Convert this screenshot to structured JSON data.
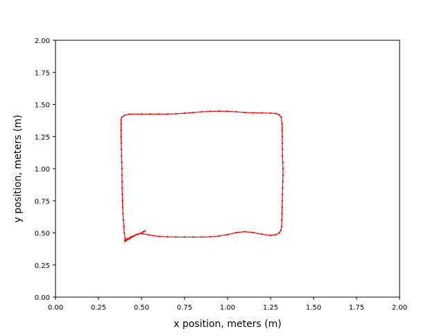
{
  "chart_data": {
    "type": "scatter",
    "title": "",
    "xlabel": "x position, meters (m)",
    "ylabel": "y position, meters (m)",
    "xlim": [
      0,
      2
    ],
    "ylim": [
      0,
      2
    ],
    "xticks": [
      "0.00",
      "0.25",
      "0.50",
      "0.75",
      "1.00",
      "1.25",
      "1.50",
      "1.75",
      "2.00"
    ],
    "yticks": [
      "0.00",
      "0.25",
      "0.50",
      "0.75",
      "1.00",
      "1.25",
      "1.50",
      "1.75",
      "2.00"
    ],
    "grid": false,
    "legend": "none",
    "series": [
      {
        "color": "#ff0000",
        "marker": "dot",
        "points": [
          [
            0.51,
            0.51
          ],
          [
            0.52,
            0.515
          ],
          [
            0.5,
            0.5
          ],
          [
            0.48,
            0.49
          ],
          [
            0.455,
            0.475
          ],
          [
            0.43,
            0.455
          ],
          [
            0.41,
            0.44
          ],
          [
            0.405,
            0.455
          ],
          [
            0.4,
            0.5
          ],
          [
            0.397,
            0.55
          ],
          [
            0.394,
            0.6
          ],
          [
            0.392,
            0.65
          ],
          [
            0.39,
            0.7
          ],
          [
            0.389,
            0.75
          ],
          [
            0.388,
            0.8
          ],
          [
            0.387,
            0.85
          ],
          [
            0.387,
            0.9
          ],
          [
            0.386,
            0.95
          ],
          [
            0.386,
            1.0
          ],
          [
            0.385,
            1.05
          ],
          [
            0.384,
            1.1
          ],
          [
            0.383,
            1.15
          ],
          [
            0.382,
            1.2
          ],
          [
            0.381,
            1.25
          ],
          [
            0.381,
            1.3
          ],
          [
            0.381,
            1.35
          ],
          [
            0.381,
            1.38
          ],
          [
            0.385,
            1.4
          ],
          [
            0.4,
            1.415
          ],
          [
            0.43,
            1.425
          ],
          [
            0.5,
            1.425
          ],
          [
            0.55,
            1.425
          ],
          [
            0.6,
            1.425
          ],
          [
            0.65,
            1.425
          ],
          [
            0.7,
            1.428
          ],
          [
            0.75,
            1.432
          ],
          [
            0.8,
            1.437
          ],
          [
            0.85,
            1.443
          ],
          [
            0.9,
            1.447
          ],
          [
            0.95,
            1.448
          ],
          [
            1.0,
            1.447
          ],
          [
            1.05,
            1.443
          ],
          [
            1.1,
            1.438
          ],
          [
            1.15,
            1.435
          ],
          [
            1.2,
            1.434
          ],
          [
            1.25,
            1.432
          ],
          [
            1.28,
            1.43
          ],
          [
            1.3,
            1.42
          ],
          [
            1.312,
            1.4
          ],
          [
            1.316,
            1.35
          ],
          [
            1.317,
            1.3
          ],
          [
            1.318,
            1.25
          ],
          [
            1.318,
            1.2
          ],
          [
            1.319,
            1.15
          ],
          [
            1.319,
            1.1
          ],
          [
            1.321,
            1.05
          ],
          [
            1.322,
            1.0
          ],
          [
            1.322,
            0.95
          ],
          [
            1.321,
            0.9
          ],
          [
            1.32,
            0.85
          ],
          [
            1.319,
            0.8
          ],
          [
            1.318,
            0.75
          ],
          [
            1.317,
            0.7
          ],
          [
            1.316,
            0.65
          ],
          [
            1.315,
            0.6
          ],
          [
            1.314,
            0.55
          ],
          [
            1.31,
            0.52
          ],
          [
            1.3,
            0.5
          ],
          [
            1.28,
            0.487
          ],
          [
            1.25,
            0.48
          ],
          [
            1.2,
            0.49
          ],
          [
            1.15,
            0.502
          ],
          [
            1.1,
            0.51
          ],
          [
            1.05,
            0.502
          ],
          [
            1.0,
            0.487
          ],
          [
            0.95,
            0.476
          ],
          [
            0.9,
            0.47
          ],
          [
            0.85,
            0.468
          ],
          [
            0.8,
            0.468
          ],
          [
            0.75,
            0.468
          ],
          [
            0.7,
            0.468
          ],
          [
            0.65,
            0.47
          ],
          [
            0.6,
            0.473
          ],
          [
            0.57,
            0.478
          ],
          [
            0.54,
            0.485
          ],
          [
            0.51,
            0.493
          ],
          [
            0.49,
            0.495
          ],
          [
            0.47,
            0.488
          ],
          [
            0.44,
            0.47
          ],
          [
            0.42,
            0.455
          ],
          [
            0.405,
            0.445
          ],
          [
            0.403,
            0.44
          ],
          [
            0.404,
            0.435
          ]
        ]
      }
    ]
  }
}
